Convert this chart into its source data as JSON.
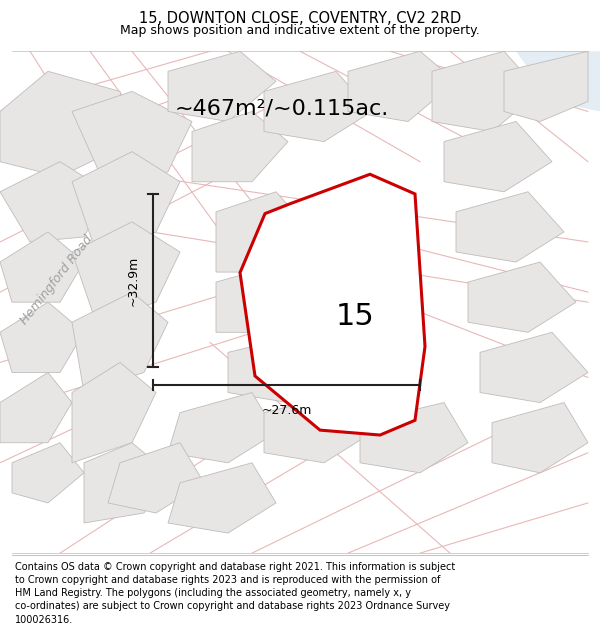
{
  "title": "15, DOWNTON CLOSE, COVENTRY, CV2 2RD",
  "subtitle": "Map shows position and indicative extent of the property.",
  "area_label": "~467m²/~0.115ac.",
  "property_number": "15",
  "width_label": "~27.6m",
  "height_label": "~32.9m",
  "footer": "Contains OS data © Crown copyright and database right 2021. This information is subject to Crown copyright and database rights 2023 and is reproduced with the permission of HM Land Registry. The polygons (including the associated geometry, namely x, y co-ordinates) are subject to Crown copyright and database rights 2023 Ordnance Survey 100026316.",
  "bg_color": "#ffffff",
  "map_bg": "#f7f6f6",
  "road_color": "#e8b8b8",
  "road_fill": "#f0eaea",
  "building_face": "#e8e5e5",
  "building_edge": "#c0bcbc",
  "property_edge_color": "#cc0000",
  "dim_line_color": "#222222",
  "street_label": "Hemingford Road",
  "title_fontsize": 10.5,
  "subtitle_fontsize": 9,
  "footer_fontsize": 7.0,
  "area_fontsize": 16,
  "number_fontsize": 22,
  "street_fontsize": 9,
  "dim_fontsize": 9
}
